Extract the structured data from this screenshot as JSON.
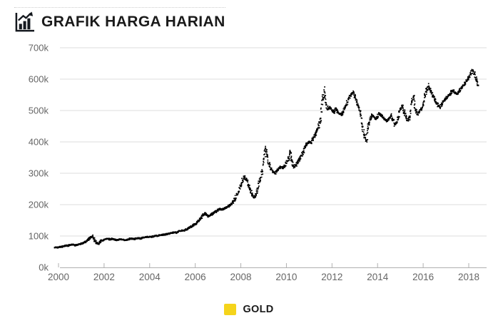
{
  "header": {
    "title": "GRAFIK HARGA HARIAN"
  },
  "legend": {
    "items": [
      {
        "label": "GOLD",
        "color": "#F5D41B"
      }
    ]
  },
  "chart_data": {
    "type": "line",
    "title": "GRAFIK HARGA HARIAN",
    "xlabel": "",
    "ylabel": "",
    "grid": "horizontal",
    "legend_position": "bottom",
    "marker_style": "dense-black-dots-daily",
    "x_ticks": [
      2000,
      2002,
      2004,
      2006,
      2008,
      2010,
      2012,
      2014,
      2016,
      2018
    ],
    "y_ticks_thousands": [
      0,
      100,
      200,
      300,
      400,
      500,
      600,
      700
    ],
    "y_tick_suffix": "k",
    "ylim_thousands": [
      0,
      700
    ],
    "xlim_years": [
      1999.8,
      2018.8
    ],
    "series": [
      {
        "name": "GOLD",
        "marker_color": "#000000",
        "x_start_year": 1999.8333,
        "x_interval": "monthly",
        "values_thousands": [
          63,
          64,
          64,
          66,
          65,
          68,
          70,
          69,
          71,
          73,
          72,
          70,
          72,
          74,
          75,
          78,
          80,
          84,
          90,
          96,
          98,
          88,
          78,
          76,
          82,
          86,
          88,
          90,
          91,
          89,
          91,
          90,
          88,
          87,
          89,
          90,
          88,
          87,
          88,
          90,
          92,
          91,
          90,
          92,
          93,
          92,
          94,
          95,
          96,
          97,
          98,
          97,
          99,
          101,
          100,
          102,
          103,
          105,
          104,
          106,
          107,
          109,
          110,
          112,
          111,
          114,
          116,
          118,
          117,
          120,
          123,
          127,
          130,
          134,
          138,
          143,
          150,
          158,
          165,
          172,
          168,
          163,
          166,
          170,
          174,
          179,
          183,
          186,
          184,
          187,
          190,
          193,
          197,
          202,
          210,
          220,
          232,
          242,
          258,
          278,
          290,
          278,
          262,
          248,
          232,
          222,
          232,
          252,
          275,
          305,
          345,
          378,
          358,
          330,
          312,
          305,
          300,
          308,
          315,
          320,
          317,
          322,
          332,
          348,
          365,
          338,
          320,
          326,
          336,
          346,
          356,
          370,
          385,
          396,
          400,
          398,
          410,
          422,
          436,
          452,
          475,
          535,
          560,
          518,
          505,
          510,
          500,
          494,
          505,
          497,
          490,
          488,
          496,
          512,
          526,
          542,
          552,
          556,
          545,
          528,
          512,
          488,
          448,
          420,
          406,
          442,
          470,
          486,
          480,
          474,
          480,
          490,
          484,
          477,
          471,
          466,
          475,
          483,
          470,
          456,
          462,
          478,
          505,
          512,
          495,
          480,
          468,
          478,
          530,
          545,
          500,
          488,
          495,
          505,
          520,
          548,
          566,
          577,
          560,
          548,
          535,
          524,
          515,
          511,
          521,
          531,
          538,
          545,
          552,
          560,
          565,
          557,
          553,
          562,
          571,
          579,
          586,
          596,
          606,
          616,
          627,
          618,
          598,
          580
        ]
      }
    ]
  }
}
